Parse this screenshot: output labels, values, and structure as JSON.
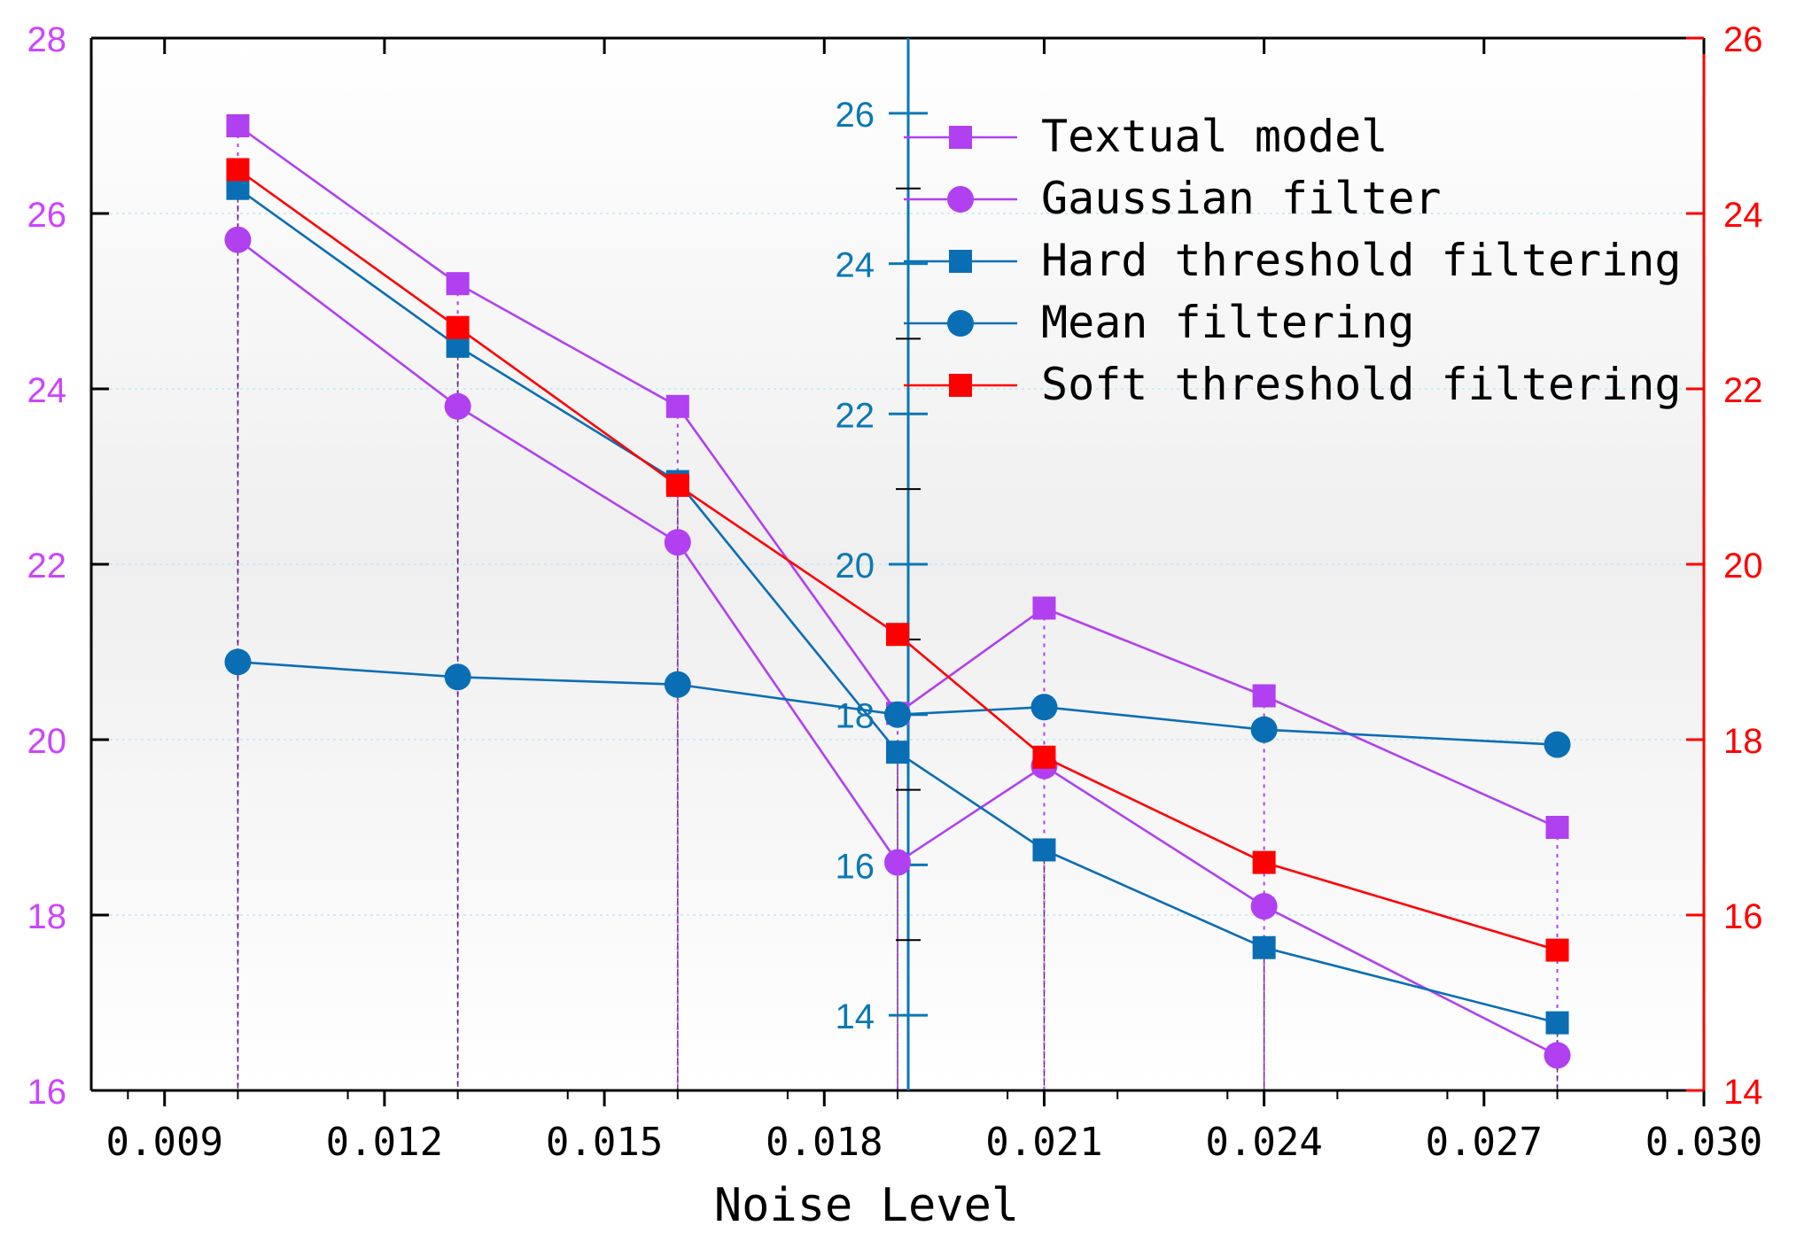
{
  "chart_data": {
    "type": "line",
    "xlabel": "Noise Level",
    "x_ticks": [
      "0.009",
      "0.012",
      "0.015",
      "0.018",
      "0.021",
      "0.024",
      "0.027",
      "0.030"
    ],
    "x_tick_values": [
      0.009,
      0.012,
      0.015,
      0.018,
      0.021,
      0.024,
      0.027,
      0.03
    ],
    "xlim": [
      0.008,
      0.03
    ],
    "x": [
      0.01,
      0.013,
      0.016,
      0.019,
      0.021,
      0.024,
      0.028
    ],
    "axes": {
      "left": {
        "ylim": [
          16,
          28
        ],
        "ticks": [
          "16",
          "18",
          "20",
          "22",
          "24",
          "26",
          "28"
        ],
        "tick_values": [
          16,
          18,
          20,
          22,
          24,
          26,
          28
        ],
        "color": "#cc44ff"
      },
      "right": {
        "ylim": [
          14,
          26
        ],
        "ticks": [
          "14",
          "16",
          "18",
          "20",
          "22",
          "24",
          "26"
        ],
        "tick_values": [
          14,
          16,
          18,
          20,
          22,
          24,
          26
        ],
        "color": "#ff0000"
      },
      "middle": {
        "ylim": [
          13,
          27
        ],
        "at_x": 0.019,
        "ticks": [
          "14",
          "16",
          "18",
          "20",
          "22",
          "24",
          "26"
        ],
        "tick_values": [
          14,
          16,
          18,
          20,
          22,
          24,
          26
        ],
        "color": "#0a78b4"
      }
    },
    "series": [
      {
        "name": "Textual model",
        "axis": "left",
        "marker": "square",
        "color": "#b040f0",
        "values": [
          27.0,
          25.2,
          23.8,
          20.3,
          21.5,
          20.5,
          19.0
        ]
      },
      {
        "name": "Gaussian filter",
        "axis": "left",
        "marker": "circle",
        "color": "#b040f0",
        "values": [
          25.7,
          23.8,
          22.25,
          18.6,
          19.7,
          18.1,
          16.4
        ]
      },
      {
        "name": "Hard threshold filtering",
        "axis": "middle",
        "marker": "square",
        "color": "#0a6eb4",
        "values": [
          25.0,
          22.9,
          21.1,
          17.5,
          16.2,
          14.9,
          13.9
        ]
      },
      {
        "name": "Mean filtering",
        "axis": "middle",
        "marker": "circle",
        "color": "#0a6eb4",
        "values": [
          18.7,
          18.5,
          18.4,
          18.0,
          18.1,
          17.8,
          17.6
        ]
      },
      {
        "name": "Soft threshold filtering",
        "axis": "right",
        "marker": "square",
        "color": "#ff0000",
        "values": [
          24.5,
          22.7,
          20.9,
          19.2,
          17.8,
          16.6,
          15.6
        ]
      }
    ],
    "legend_position": "top-right",
    "grid": "horizontal dotted"
  }
}
